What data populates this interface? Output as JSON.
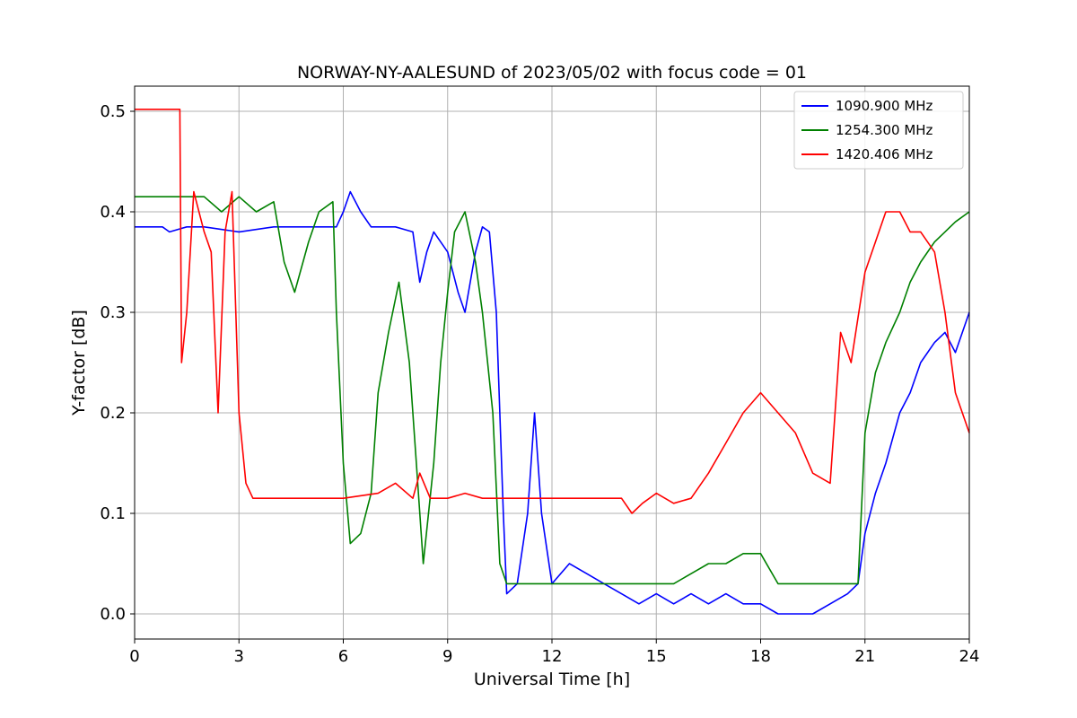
{
  "chart_data": {
    "type": "line",
    "title": "NORWAY-NY-AALESUND of 2023/05/02 with focus code = 01",
    "xlabel": "Universal Time [h]",
    "ylabel": "Y-factor [dB]",
    "xlim": [
      0,
      24
    ],
    "ylim": [
      -0.025,
      0.525
    ],
    "x_ticks": [
      0,
      3,
      6,
      9,
      12,
      15,
      18,
      21,
      24
    ],
    "x_tick_labels": [
      "0",
      "3",
      "6",
      "9",
      "12",
      "15",
      "18",
      "21",
      "24"
    ],
    "y_ticks": [
      0.0,
      0.1,
      0.2,
      0.3,
      0.4,
      0.5
    ],
    "y_tick_labels": [
      "0.0",
      "0.1",
      "0.2",
      "0.3",
      "0.4",
      "0.5"
    ],
    "grid": true,
    "legend_position": "top-right",
    "series": [
      {
        "name": "1090.900 MHz",
        "color": "#0000ff",
        "points": [
          [
            0,
            0.385
          ],
          [
            0.8,
            0.385
          ],
          [
            1.0,
            0.38
          ],
          [
            1.5,
            0.385
          ],
          [
            2.0,
            0.385
          ],
          [
            3.0,
            0.38
          ],
          [
            4.0,
            0.385
          ],
          [
            5.0,
            0.385
          ],
          [
            5.8,
            0.385
          ],
          [
            6.0,
            0.4
          ],
          [
            6.2,
            0.42
          ],
          [
            6.5,
            0.4
          ],
          [
            6.8,
            0.385
          ],
          [
            7.5,
            0.385
          ],
          [
            8.0,
            0.38
          ],
          [
            8.2,
            0.33
          ],
          [
            8.4,
            0.36
          ],
          [
            8.6,
            0.38
          ],
          [
            9.0,
            0.36
          ],
          [
            9.3,
            0.32
          ],
          [
            9.5,
            0.3
          ],
          [
            9.8,
            0.36
          ],
          [
            10.0,
            0.385
          ],
          [
            10.2,
            0.38
          ],
          [
            10.4,
            0.3
          ],
          [
            10.5,
            0.2
          ],
          [
            10.6,
            0.1
          ],
          [
            10.7,
            0.02
          ],
          [
            11.0,
            0.03
          ],
          [
            11.3,
            0.1
          ],
          [
            11.5,
            0.2
          ],
          [
            11.7,
            0.1
          ],
          [
            12.0,
            0.03
          ],
          [
            12.5,
            0.05
          ],
          [
            13.0,
            0.04
          ],
          [
            13.5,
            0.03
          ],
          [
            14.0,
            0.02
          ],
          [
            14.5,
            0.01
          ],
          [
            15.0,
            0.02
          ],
          [
            15.5,
            0.01
          ],
          [
            16.0,
            0.02
          ],
          [
            16.5,
            0.01
          ],
          [
            17.0,
            0.02
          ],
          [
            17.5,
            0.01
          ],
          [
            18.0,
            0.01
          ],
          [
            18.5,
            0.0
          ],
          [
            19.0,
            0.0
          ],
          [
            19.5,
            0.0
          ],
          [
            20.0,
            0.01
          ],
          [
            20.5,
            0.02
          ],
          [
            20.8,
            0.03
          ],
          [
            21.0,
            0.08
          ],
          [
            21.3,
            0.12
          ],
          [
            21.6,
            0.15
          ],
          [
            22.0,
            0.2
          ],
          [
            22.3,
            0.22
          ],
          [
            22.6,
            0.25
          ],
          [
            23.0,
            0.27
          ],
          [
            23.3,
            0.28
          ],
          [
            23.6,
            0.26
          ],
          [
            24.0,
            0.3
          ]
        ]
      },
      {
        "name": "1254.300 MHz",
        "color": "#008000",
        "points": [
          [
            0,
            0.415
          ],
          [
            1.3,
            0.415
          ],
          [
            2.0,
            0.415
          ],
          [
            2.5,
            0.4
          ],
          [
            3.0,
            0.415
          ],
          [
            3.5,
            0.4
          ],
          [
            4.0,
            0.41
          ],
          [
            4.3,
            0.35
          ],
          [
            4.6,
            0.32
          ],
          [
            5.0,
            0.37
          ],
          [
            5.3,
            0.4
          ],
          [
            5.7,
            0.41
          ],
          [
            5.8,
            0.3
          ],
          [
            6.0,
            0.15
          ],
          [
            6.2,
            0.07
          ],
          [
            6.5,
            0.08
          ],
          [
            6.8,
            0.12
          ],
          [
            7.0,
            0.22
          ],
          [
            7.3,
            0.28
          ],
          [
            7.6,
            0.33
          ],
          [
            7.9,
            0.25
          ],
          [
            8.1,
            0.15
          ],
          [
            8.3,
            0.05
          ],
          [
            8.6,
            0.15
          ],
          [
            8.8,
            0.25
          ],
          [
            9.0,
            0.32
          ],
          [
            9.2,
            0.38
          ],
          [
            9.5,
            0.4
          ],
          [
            9.8,
            0.35
          ],
          [
            10.0,
            0.3
          ],
          [
            10.3,
            0.2
          ],
          [
            10.5,
            0.05
          ],
          [
            10.7,
            0.03
          ],
          [
            11.0,
            0.03
          ],
          [
            12.0,
            0.03
          ],
          [
            13.0,
            0.03
          ],
          [
            14.0,
            0.03
          ],
          [
            14.5,
            0.03
          ],
          [
            15.0,
            0.03
          ],
          [
            15.5,
            0.03
          ],
          [
            16.0,
            0.04
          ],
          [
            16.5,
            0.05
          ],
          [
            17.0,
            0.05
          ],
          [
            17.5,
            0.06
          ],
          [
            18.0,
            0.06
          ],
          [
            18.5,
            0.03
          ],
          [
            19.0,
            0.03
          ],
          [
            19.5,
            0.03
          ],
          [
            19.8,
            0.03
          ],
          [
            20.0,
            0.03
          ],
          [
            20.5,
            0.03
          ],
          [
            20.8,
            0.03
          ],
          [
            21.0,
            0.18
          ],
          [
            21.3,
            0.24
          ],
          [
            21.6,
            0.27
          ],
          [
            22.0,
            0.3
          ],
          [
            22.3,
            0.33
          ],
          [
            22.6,
            0.35
          ],
          [
            23.0,
            0.37
          ],
          [
            23.3,
            0.38
          ],
          [
            23.6,
            0.39
          ],
          [
            24.0,
            0.4
          ]
        ]
      },
      {
        "name": "1420.406 MHz",
        "color": "#ff0000",
        "points": [
          [
            0,
            0.502
          ],
          [
            1.3,
            0.502
          ],
          [
            1.35,
            0.25
          ],
          [
            1.5,
            0.3
          ],
          [
            1.7,
            0.42
          ],
          [
            2.0,
            0.38
          ],
          [
            2.2,
            0.36
          ],
          [
            2.4,
            0.2
          ],
          [
            2.6,
            0.38
          ],
          [
            2.8,
            0.42
          ],
          [
            3.0,
            0.2
          ],
          [
            3.2,
            0.13
          ],
          [
            3.4,
            0.115
          ],
          [
            3.6,
            0.115
          ],
          [
            4.0,
            0.115
          ],
          [
            5.0,
            0.115
          ],
          [
            6.0,
            0.115
          ],
          [
            7.0,
            0.12
          ],
          [
            7.5,
            0.13
          ],
          [
            8.0,
            0.115
          ],
          [
            8.2,
            0.14
          ],
          [
            8.5,
            0.115
          ],
          [
            9.0,
            0.115
          ],
          [
            9.5,
            0.12
          ],
          [
            10.0,
            0.115
          ],
          [
            11.0,
            0.115
          ],
          [
            12.0,
            0.115
          ],
          [
            13.0,
            0.115
          ],
          [
            14.0,
            0.115
          ],
          [
            14.3,
            0.1
          ],
          [
            14.6,
            0.11
          ],
          [
            15.0,
            0.12
          ],
          [
            15.5,
            0.11
          ],
          [
            16.0,
            0.115
          ],
          [
            16.5,
            0.14
          ],
          [
            17.0,
            0.17
          ],
          [
            17.5,
            0.2
          ],
          [
            18.0,
            0.22
          ],
          [
            18.5,
            0.2
          ],
          [
            19.0,
            0.18
          ],
          [
            19.5,
            0.14
          ],
          [
            20.0,
            0.13
          ],
          [
            20.3,
            0.28
          ],
          [
            20.6,
            0.25
          ],
          [
            21.0,
            0.34
          ],
          [
            21.3,
            0.37
          ],
          [
            21.6,
            0.4
          ],
          [
            22.0,
            0.4
          ],
          [
            22.3,
            0.38
          ],
          [
            22.6,
            0.38
          ],
          [
            23.0,
            0.36
          ],
          [
            23.3,
            0.3
          ],
          [
            23.6,
            0.22
          ],
          [
            24.0,
            0.18
          ]
        ]
      }
    ]
  }
}
